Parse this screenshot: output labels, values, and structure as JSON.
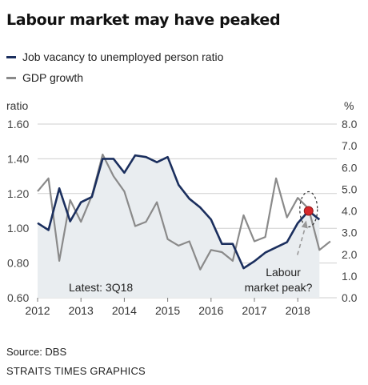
{
  "title": "Labour market may have peaked",
  "source": "Source: DBS",
  "credit": "STRAITS TIMES GRAPHICS",
  "chart_data": {
    "type": "line",
    "left_axis_label": "ratio",
    "right_axis_label": "%",
    "left_ticks": [
      "0.60",
      "0.80",
      "1.00",
      "1.20",
      "1.40",
      "1.60"
    ],
    "right_ticks": [
      "0.0",
      "1.0",
      "2.0",
      "3.0",
      "4.0",
      "5.0",
      "6.0",
      "7.0",
      "8.0"
    ],
    "ylim_left": [
      0.6,
      1.6
    ],
    "ylim_right": [
      0,
      8
    ],
    "x_labels": [
      "2012",
      "2013",
      "2014",
      "2015",
      "2016",
      "2017",
      "2018"
    ],
    "xlim": [
      2012.0,
      2018.9
    ],
    "series": [
      {
        "name": "Job vacancy to unemployed person ratio",
        "axis": "left",
        "style": "filled-area",
        "color": "#1b2f5e",
        "x": [
          2012.0,
          2012.25,
          2012.5,
          2012.75,
          2013.0,
          2013.25,
          2013.5,
          2013.75,
          2014.0,
          2014.25,
          2014.5,
          2014.75,
          2015.0,
          2015.25,
          2015.5,
          2015.75,
          2016.0,
          2016.25,
          2016.5,
          2016.75,
          2017.0,
          2017.25,
          2017.5,
          2017.75,
          2018.0,
          2018.25,
          2018.5
        ],
        "values": [
          1.03,
          0.99,
          1.23,
          1.04,
          1.15,
          1.18,
          1.4,
          1.4,
          1.32,
          1.42,
          1.41,
          1.38,
          1.41,
          1.25,
          1.17,
          1.12,
          1.05,
          0.91,
          0.91,
          0.77,
          0.81,
          0.86,
          0.89,
          0.92,
          1.03,
          1.1,
          1.05
        ]
      },
      {
        "name": "GDP growth",
        "axis": "right",
        "style": "line",
        "color": "#8a8a8a",
        "x": [
          2012.0,
          2012.25,
          2012.5,
          2012.75,
          2013.0,
          2013.25,
          2013.5,
          2013.75,
          2014.0,
          2014.25,
          2014.5,
          2014.75,
          2015.0,
          2015.25,
          2015.5,
          2015.75,
          2016.0,
          2016.25,
          2016.5,
          2016.75,
          2017.0,
          2017.25,
          2017.5,
          2017.75,
          2018.0,
          2018.25,
          2018.5,
          2018.75
        ],
        "values": [
          4.9,
          5.5,
          1.7,
          4.5,
          3.5,
          4.7,
          6.6,
          5.6,
          4.9,
          3.3,
          3.5,
          4.4,
          2.7,
          2.4,
          2.6,
          1.3,
          2.2,
          2.1,
          1.7,
          3.8,
          2.6,
          2.8,
          5.5,
          3.7,
          4.6,
          4.1,
          2.2,
          2.6
        ]
      }
    ],
    "peak_marker": {
      "x": 2018.25,
      "value": 1.1,
      "color": "#d6282b"
    },
    "annotations": {
      "latest": "Latest: 3Q18",
      "peak_line1": "Labour",
      "peak_line2": "market peak?"
    },
    "grid": true
  }
}
